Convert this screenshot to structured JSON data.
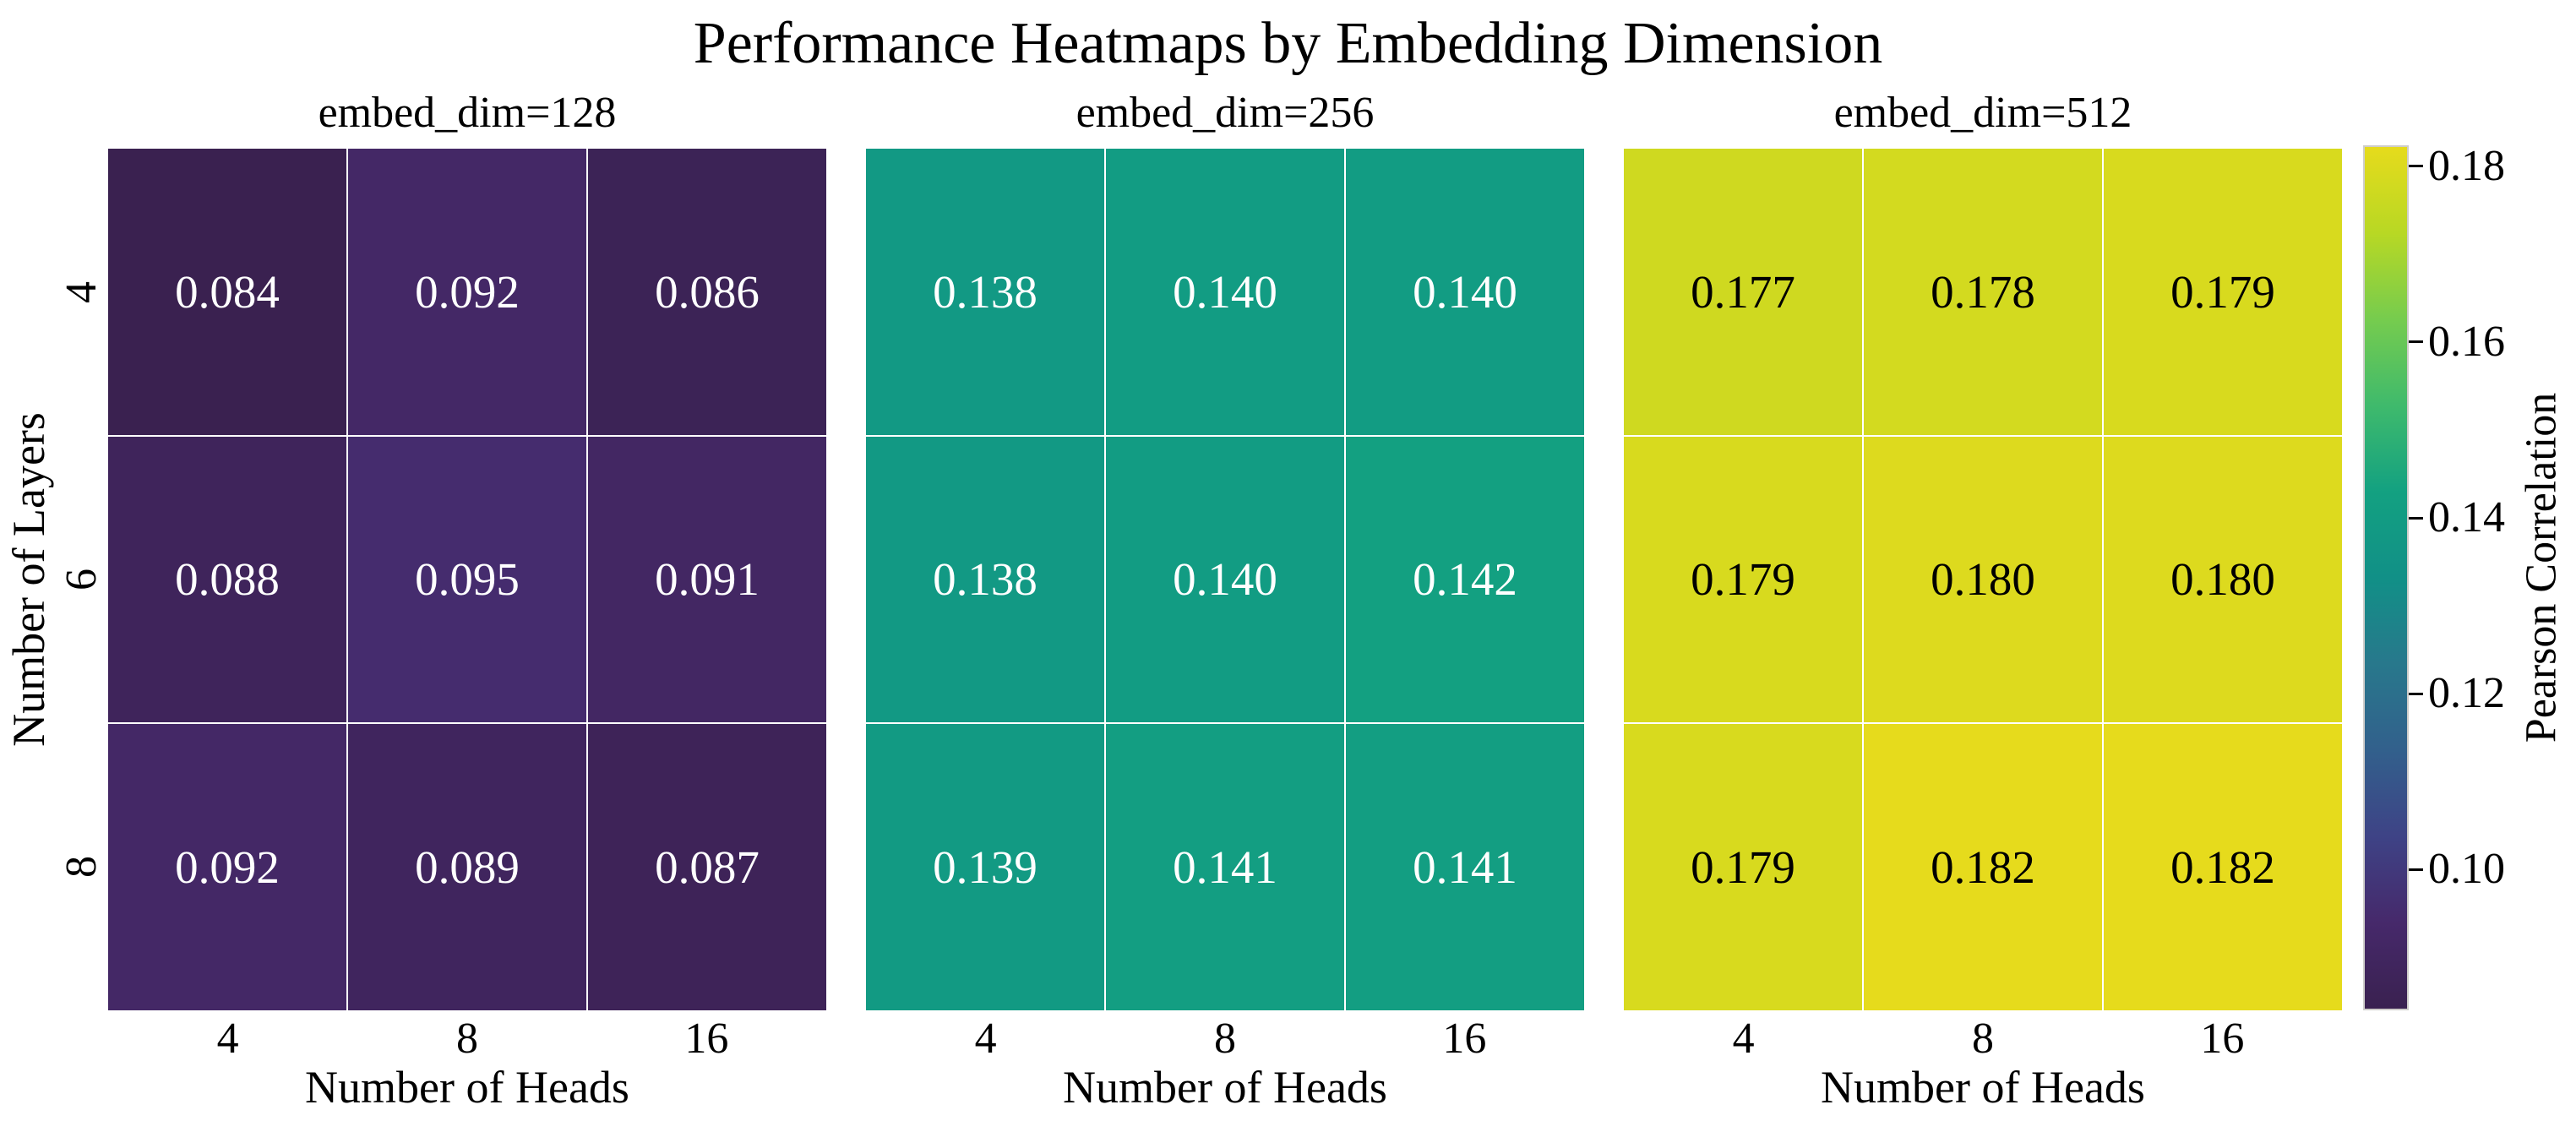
{
  "title": "Performance Heatmaps by Embedding Dimension",
  "axes": {
    "xlabel": "Number of Heads",
    "ylabel": "Number of Layers",
    "x_tick_labels": [
      "4",
      "8",
      "16"
    ],
    "y_tick_labels": [
      "4",
      "6",
      "8"
    ]
  },
  "colorbar": {
    "label": "Pearson Correlation",
    "tick_labels": [
      "0.10",
      "0.12",
      "0.14",
      "0.16",
      "0.18"
    ],
    "tick_values": [
      0.1,
      0.12,
      0.14,
      0.16,
      0.18
    ],
    "vmin": 0.084,
    "vmax": 0.182
  },
  "colormap": {
    "name": "viridis",
    "stops": [
      "#3a2150",
      "#46296b",
      "#3e4386",
      "#32608c",
      "#28788c",
      "#119087",
      "#13a181",
      "#3fba6c",
      "#76cc4e",
      "#b8d824",
      "#e6db1c"
    ],
    "annotation_light": "#ffffff",
    "annotation_dark": "#000000"
  },
  "chart_data": {
    "type": "heatmap",
    "title": "Performance Heatmaps by Embedding Dimension",
    "xlabel": "Number of Heads",
    "ylabel": "Number of Layers",
    "colorbar_label": "Pearson Correlation",
    "vmin": 0.084,
    "vmax": 0.182,
    "x": [
      4,
      8,
      16
    ],
    "y": [
      4,
      6,
      8
    ],
    "value_format": "0.000",
    "panels": [
      {
        "title": "embed_dim=128",
        "values": [
          [
            0.084,
            0.092,
            0.086
          ],
          [
            0.088,
            0.095,
            0.091
          ],
          [
            0.092,
            0.089,
            0.087
          ]
        ]
      },
      {
        "title": "embed_dim=256",
        "values": [
          [
            0.138,
            0.14,
            0.14
          ],
          [
            0.138,
            0.14,
            0.142
          ],
          [
            0.139,
            0.141,
            0.141
          ]
        ]
      },
      {
        "title": "embed_dim=512",
        "values": [
          [
            0.177,
            0.178,
            0.179
          ],
          [
            0.179,
            0.18,
            0.18
          ],
          [
            0.179,
            0.182,
            0.182
          ]
        ]
      }
    ]
  }
}
